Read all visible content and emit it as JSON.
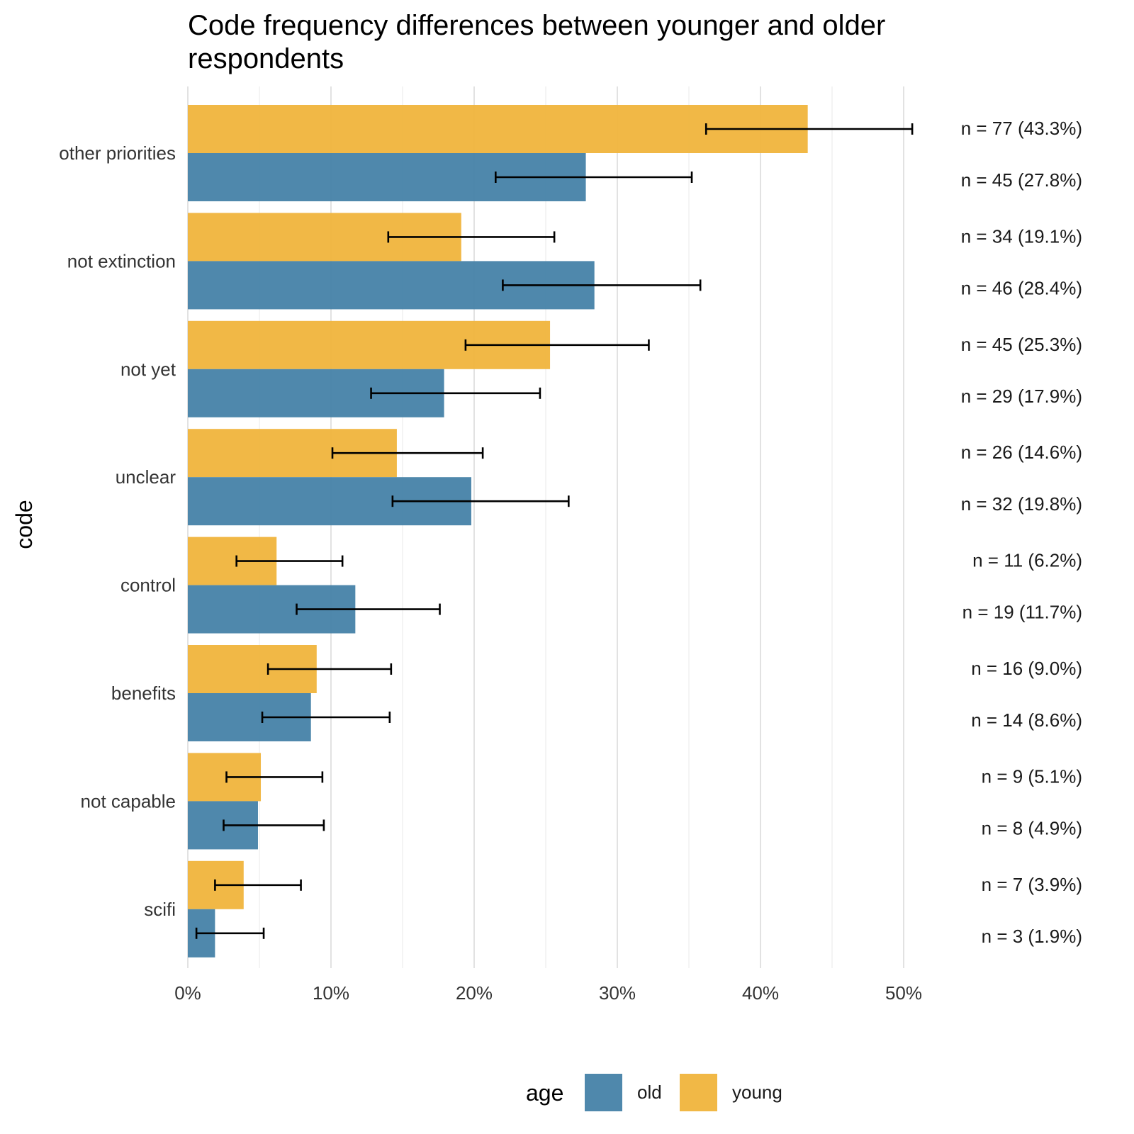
{
  "chart_data": {
    "type": "bar",
    "orientation": "horizontal",
    "title_lines": [
      "Code frequency differences between younger and older",
      "respondents"
    ],
    "xlabel": "",
    "ylabel": "code",
    "xlim": [
      0,
      52
    ],
    "x_ticks": [
      0,
      10,
      20,
      30,
      40,
      50
    ],
    "x_tick_labels": [
      "0%",
      "10%",
      "20%",
      "30%",
      "40%",
      "50%"
    ],
    "grid": true,
    "legend": {
      "title": "age",
      "position": "bottom",
      "entries": [
        {
          "key": "old",
          "label": "old",
          "color": "#4682a8"
        },
        {
          "key": "young",
          "label": "young",
          "color": "#f0b43c"
        }
      ]
    },
    "categories": [
      "other priorities",
      "not extinction",
      "not yet",
      "unclear",
      "control",
      "benefits",
      "not capable",
      "scifi"
    ],
    "series": [
      {
        "name": "young",
        "color": "#f0b43c",
        "values": [
          43.3,
          19.1,
          25.3,
          14.6,
          6.2,
          9.0,
          5.1,
          3.9
        ],
        "ci_low": [
          36.2,
          14.0,
          19.4,
          10.1,
          3.4,
          5.6,
          2.7,
          1.9
        ],
        "ci_high": [
          50.6,
          25.6,
          32.2,
          20.6,
          10.8,
          14.2,
          9.4,
          7.9
        ],
        "labels": [
          "n = 77 (43.3%)",
          "n = 34 (19.1%)",
          "n = 45 (25.3%)",
          "n = 26 (14.6%)",
          "n = 11 (6.2%)",
          "n = 16 (9.0%)",
          "n = 9 (5.1%)",
          "n = 7 (3.9%)"
        ]
      },
      {
        "name": "old",
        "color": "#4682a8",
        "values": [
          27.8,
          28.4,
          17.9,
          19.8,
          11.7,
          8.6,
          4.9,
          1.9
        ],
        "ci_low": [
          21.5,
          22.0,
          12.8,
          14.3,
          7.6,
          5.2,
          2.5,
          0.6
        ],
        "ci_high": [
          35.2,
          35.8,
          24.6,
          26.6,
          17.6,
          14.1,
          9.5,
          5.3
        ],
        "labels": [
          "n = 45 (27.8%)",
          "n = 46 (28.4%)",
          "n = 29 (17.9%)",
          "n = 32 (19.8%)",
          "n = 19 (11.7%)",
          "n = 14 (8.6%)",
          "n = 8 (4.9%)",
          "n = 3 (1.9%)"
        ]
      }
    ]
  }
}
